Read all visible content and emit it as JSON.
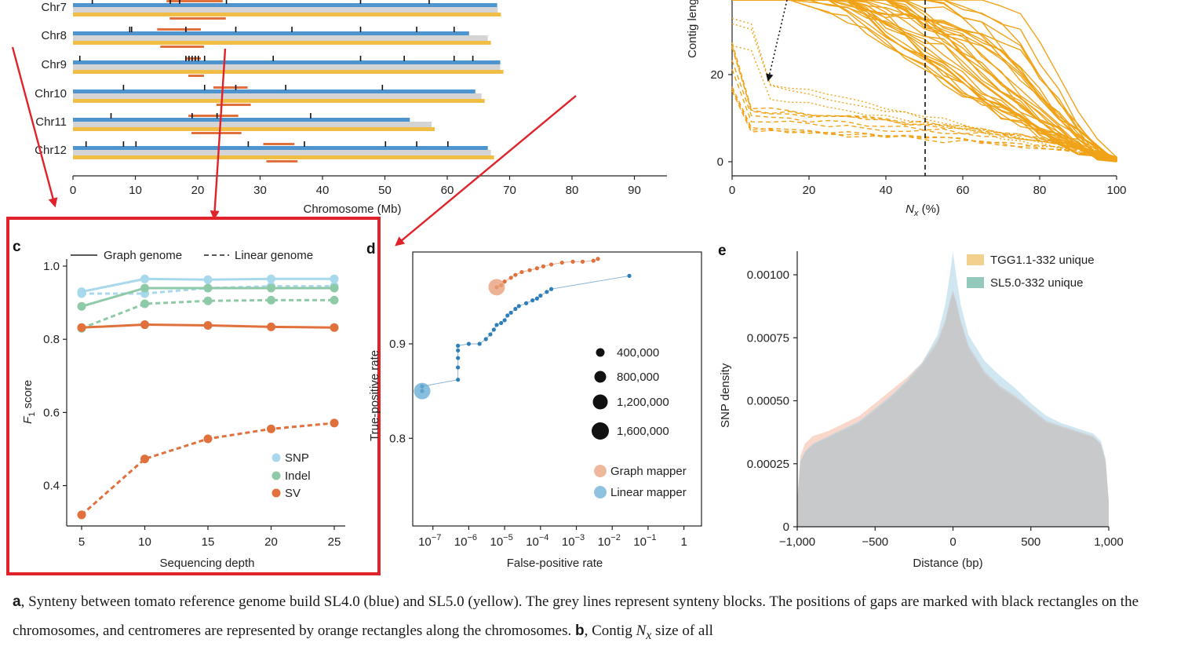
{
  "panel_a": {
    "chromosomes": [
      {
        "name": "Chr7",
        "sl4_len": 68.0,
        "sl5_len": 68.6,
        "cent": [
          15.0,
          24.0
        ],
        "gaps": [
          3.0,
          15.5,
          17.0,
          24.5,
          46.0,
          57.0
        ]
      },
      {
        "name": "Chr8",
        "sl4_len": 63.5,
        "sl5_len": 67.0,
        "cent": [
          13.5,
          20.5
        ],
        "gaps": [
          9.0,
          9.3,
          18.0,
          26.0,
          35.0,
          46.0,
          55.0,
          61.0
        ]
      },
      {
        "name": "Chr9",
        "sl4_len": 68.5,
        "sl5_len": 69.0,
        "cent": [
          18.0,
          20.5
        ],
        "gaps": [
          1.0,
          18.0,
          18.5,
          19.0,
          19.5,
          20.0,
          21.0,
          32.0,
          46.0,
          53.0,
          61.0,
          64.0
        ]
      },
      {
        "name": "Chr10",
        "sl4_len": 64.5,
        "sl5_len": 66.0,
        "cent": [
          22.5,
          28.0
        ],
        "gaps": [
          8.0,
          21.0,
          26.0,
          34.0,
          49.5
        ]
      },
      {
        "name": "Chr11",
        "sl4_len": 54.0,
        "sl5_len": 58.0,
        "cent": [
          18.5,
          26.5
        ],
        "gaps": [
          6.0,
          19.0,
          23.0,
          38.0
        ]
      },
      {
        "name": "Chr12",
        "sl4_len": 66.5,
        "sl5_len": 67.5,
        "cent": [
          30.5,
          35.5
        ],
        "gaps": [
          2.0,
          8.0,
          10.0,
          28.0,
          37.0,
          50.0,
          55.0,
          60.0
        ]
      }
    ],
    "x_ticks": [
      "0",
      "10",
      "20",
      "30",
      "40",
      "50",
      "60",
      "70",
      "80",
      "90"
    ],
    "x_label": "Chromosome (Mb)",
    "colors": {
      "sl4": "#4e95cf",
      "sl5": "#f0bd45",
      "synteny": "#d4d4d4",
      "centromere": "#e0703c",
      "gap": "#111111"
    }
  },
  "panel_b": {
    "y_label": "Contig length",
    "x_label_main": "N",
    "x_label_sub": "x",
    "x_label_unit": " (%)",
    "x_ticks": [
      "0",
      "20",
      "40",
      "60",
      "80",
      "100"
    ],
    "y_ticks": [
      "20",
      "0"
    ],
    "color": "#f0a318"
  },
  "panel_c": {
    "letter": "c",
    "legend_solid": "Graph genome",
    "legend_dashed": "Linear genome",
    "y_label_main": "F",
    "y_label_sub": "1",
    "y_label_rest": " score",
    "x_label": "Sequencing depth",
    "y_ticks": [
      "1.0",
      "0.8",
      "0.6",
      "0.4"
    ],
    "x_ticks": [
      "5",
      "10",
      "15",
      "20",
      "25"
    ],
    "series_labels": {
      "snp": "SNP",
      "indel": "Indel",
      "sv": "SV"
    }
  },
  "panel_d": {
    "letter": "d",
    "y_label": "True-positive rate",
    "x_label": "False-positive rate",
    "y_ticks": [
      "0.9",
      "0.8"
    ],
    "x_tick_base": "10",
    "x_tick_exps": [
      "−7",
      "−6",
      "−5",
      "−4",
      "−3",
      "−2",
      "−1"
    ],
    "x_tick_one": "1",
    "size_legend": [
      "400,000",
      "800,000",
      "1,200,000",
      "1,600,000"
    ],
    "mapper_legend": {
      "graph": "Graph mapper",
      "linear": "Linear mapper"
    }
  },
  "panel_e": {
    "letter": "e",
    "y_label": "SNP density",
    "x_label": "Distance (bp)",
    "y_ticks": [
      "0.00100",
      "0.00075",
      "0.00050",
      "0.00025",
      "0"
    ],
    "x_ticks": [
      "−1,000",
      "−500",
      "0",
      "500",
      "1,000"
    ],
    "legend": {
      "tgg": "TGG1.1-332 unique",
      "sl5": "SL5.0-332 unique"
    }
  },
  "chart_data": [
    {
      "type": "line",
      "title": "",
      "xlabel": "Sequencing depth",
      "ylabel": "F1 score",
      "ylim": [
        0.3,
        1.0
      ],
      "x": [
        5,
        10,
        15,
        20,
        25
      ],
      "series": [
        {
          "name": "SNP",
          "style": "solid",
          "color": "#a8d8ec",
          "values": [
            0.93,
            0.965,
            0.963,
            0.965,
            0.965
          ]
        },
        {
          "name": "SNP",
          "style": "dashed",
          "color": "#a8d8ec",
          "values": [
            0.925,
            0.925,
            0.94,
            0.945,
            0.945
          ]
        },
        {
          "name": "Indel",
          "style": "solid",
          "color": "#8fcaa8",
          "values": [
            0.89,
            0.94,
            0.94,
            0.94,
            0.94
          ]
        },
        {
          "name": "Indel",
          "style": "dashed",
          "color": "#8fcaa8",
          "values": [
            0.83,
            0.897,
            0.905,
            0.907,
            0.907
          ]
        },
        {
          "name": "SV",
          "style": "solid",
          "color": "#e0703c",
          "values": [
            0.832,
            0.84,
            0.838,
            0.834,
            0.832
          ]
        },
        {
          "name": "SV",
          "style": "dashed",
          "color": "#e0703c",
          "values": [
            0.32,
            0.473,
            0.528,
            0.555,
            0.571
          ]
        }
      ]
    },
    {
      "type": "scatter",
      "xlabel": "False-positive rate",
      "ylabel": "True-positive rate",
      "x_scale": "log",
      "xlim": [
        1e-08,
        10
      ],
      "ylim": [
        0.71,
        0.995
      ],
      "series": [
        {
          "name": "Graph mapper",
          "color": "#e0703c",
          "points": [
            [
              6e-06,
              0.96
            ],
            [
              8e-06,
              0.962
            ],
            [
              1e-05,
              0.966
            ],
            [
              1.5e-05,
              0.97
            ],
            [
              2e-05,
              0.973
            ],
            [
              3e-05,
              0.976
            ],
            [
              5e-05,
              0.978
            ],
            [
              8e-05,
              0.98
            ],
            [
              0.00012,
              0.982
            ],
            [
              0.0002,
              0.984
            ],
            [
              0.0004,
              0.986
            ],
            [
              0.0008,
              0.987
            ],
            [
              0.0015,
              0.987
            ],
            [
              0.003,
              0.988
            ],
            [
              0.004,
              0.99
            ]
          ]
        },
        {
          "name": "Linear mapper",
          "color": "#2e7fb8",
          "points": [
            [
              5e-08,
              0.85
            ],
            [
              5e-08,
              0.855
            ],
            [
              5e-07,
              0.862
            ],
            [
              5e-07,
              0.875
            ],
            [
              5e-07,
              0.885
            ],
            [
              5e-07,
              0.893
            ],
            [
              5e-07,
              0.898
            ],
            [
              1e-06,
              0.9
            ],
            [
              2e-06,
              0.9
            ],
            [
              3e-06,
              0.905
            ],
            [
              4e-06,
              0.91
            ],
            [
              5e-06,
              0.915
            ],
            [
              6e-06,
              0.92
            ],
            [
              8e-06,
              0.922
            ],
            [
              1e-05,
              0.925
            ],
            [
              1.2e-05,
              0.93
            ],
            [
              1.5e-05,
              0.933
            ],
            [
              2e-05,
              0.937
            ],
            [
              2.5e-05,
              0.94
            ],
            [
              4e-05,
              0.943
            ],
            [
              6e-05,
              0.946
            ],
            [
              8e-05,
              0.948
            ],
            [
              0.0001,
              0.951
            ],
            [
              0.00015,
              0.955
            ],
            [
              0.0002,
              0.958
            ],
            [
              0.03,
              0.972
            ]
          ]
        }
      ],
      "highlight": [
        {
          "series": "Graph mapper",
          "x": 6e-06,
          "y": 0.96,
          "size": 1200000
        },
        {
          "series": "Linear mapper",
          "x": 5e-08,
          "y": 0.85,
          "size": 1400000
        }
      ]
    },
    {
      "type": "area",
      "xlabel": "Distance (bp)",
      "ylabel": "SNP density",
      "xlim": [
        -1000,
        1000
      ],
      "ylim": [
        0,
        0.0011
      ],
      "x": [
        -1000,
        -980,
        -950,
        -900,
        -800,
        -700,
        -600,
        -500,
        -400,
        -300,
        -200,
        -100,
        -50,
        -20,
        0,
        20,
        50,
        100,
        200,
        300,
        400,
        500,
        600,
        700,
        800,
        900,
        950,
        980,
        1000
      ],
      "series": [
        {
          "name": "TGG1.1-332 unique",
          "color": "#f0bd45",
          "values": [
            0.0001,
            0.00028,
            0.00033,
            0.00036,
            0.00038,
            0.00041,
            0.00044,
            0.00049,
            0.00054,
            0.00059,
            0.00065,
            0.00074,
            0.00082,
            0.0009,
            0.00094,
            0.0009,
            0.00082,
            0.00072,
            0.00062,
            0.00056,
            0.00052,
            0.00047,
            0.00042,
            0.0004,
            0.00038,
            0.00036,
            0.00033,
            0.00026,
            0.0001
          ]
        },
        {
          "name": "SL5.0-332 unique",
          "color": "#7fbfb0",
          "values": [
            0.0001,
            0.00026,
            0.0003,
            0.00033,
            0.00036,
            0.00039,
            0.00042,
            0.00047,
            0.00052,
            0.00058,
            0.00065,
            0.00076,
            0.00088,
            0.001,
            0.00109,
            0.001,
            0.00088,
            0.00076,
            0.00066,
            0.0006,
            0.00055,
            0.00049,
            0.00044,
            0.00041,
            0.00039,
            0.00037,
            0.00034,
            0.00027,
            0.0001
          ]
        }
      ]
    }
  ],
  "caption": {
    "a_letter": "a",
    "a_text": ", Synteny between tomato reference genome build SL4.0 (blue) and SL5.0 (yellow). The grey lines represent synteny blocks. The positions of gaps are marked with black rectangles on the chromosomes, and centromeres are represented by orange rectangles along the chromosomes.",
    "b_letter": "b",
    "b_text": ", Contig ",
    "b_nx": "N",
    "b_sub": "x",
    "b_text2": " size of all"
  }
}
